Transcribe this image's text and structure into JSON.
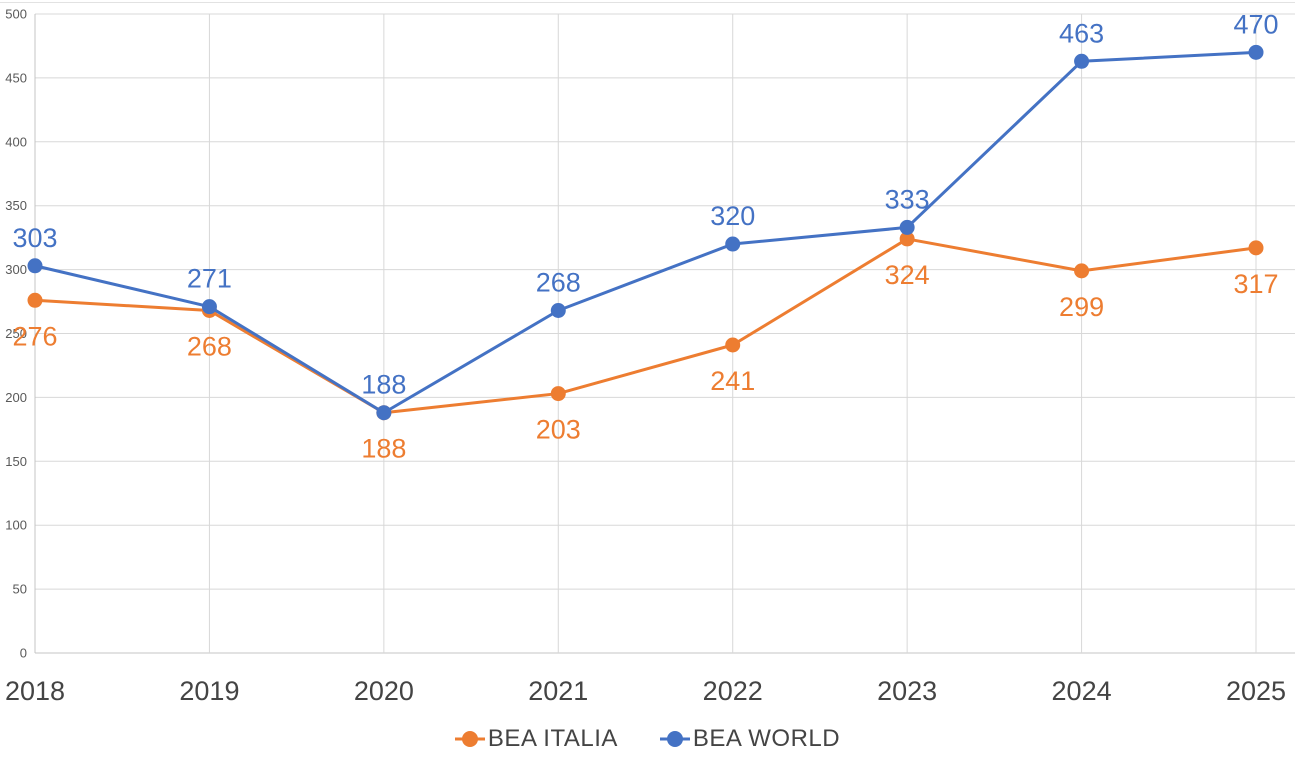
{
  "chart_data": {
    "type": "line",
    "title": "",
    "xlabel": "",
    "ylabel": "",
    "categories": [
      "2018",
      "2019",
      "2020",
      "2021",
      "2022",
      "2023",
      "2024",
      "2025"
    ],
    "series": [
      {
        "name": "BEA ITALIA",
        "color": "#ED7D31",
        "values": [
          276,
          268,
          188,
          203,
          241,
          324,
          299,
          317
        ],
        "label_position": "below"
      },
      {
        "name": "BEA WORLD",
        "color": "#4472C4",
        "values": [
          303,
          271,
          188,
          268,
          320,
          333,
          463,
          470
        ],
        "label_position": "above"
      }
    ],
    "ylim": [
      0,
      500
    ],
    "y_tick_step": 50,
    "y_tick_labels": [
      "0",
      "50",
      "100",
      "150",
      "200",
      "250",
      "300",
      "350",
      "400",
      "450",
      "500"
    ],
    "grid": true,
    "data_labels": true,
    "legend_position": "bottom-center",
    "marker": "circle"
  },
  "colors": {
    "background": "#FFFFFF",
    "gridline": "#D8D8D8",
    "axis_line": "#C4C4C4",
    "tick_text": "#595959",
    "category_text": "#444444",
    "legend_text": "#444444",
    "top_border": "#E2E2E2",
    "series_italia": "#ED7D31",
    "series_world": "#4472C4"
  }
}
